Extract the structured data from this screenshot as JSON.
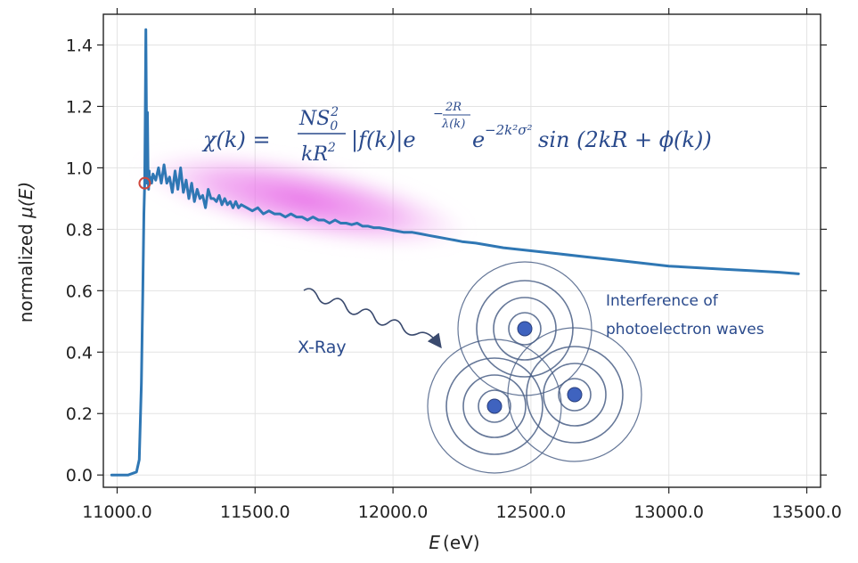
{
  "chart_data": {
    "type": "line",
    "xlabel_symbol": "E",
    "xlabel_unit": "(eV)",
    "ylabel_prefix": "normalized ",
    "ylabel_symbol": "μ(E)",
    "xlim": [
      10950,
      13550
    ],
    "ylim": [
      -0.04,
      1.5
    ],
    "xticks": [
      11000,
      11500,
      12000,
      12500,
      13000,
      13500
    ],
    "xtick_labels": [
      "11000.0",
      "11500.0",
      "12000.0",
      "12500.0",
      "13000.0",
      "13500.0"
    ],
    "yticks": [
      0.0,
      0.2,
      0.4,
      0.6,
      0.8,
      1.0,
      1.2,
      1.4
    ],
    "ytick_labels": [
      "0.0",
      "0.2",
      "0.4",
      "0.6",
      "0.8",
      "1.0",
      "1.2",
      "1.4"
    ],
    "grid": true,
    "series": [
      {
        "color": "#2f77b4",
        "x": [
          10980,
          11000,
          11040,
          11070,
          11080,
          11088,
          11093,
          11097,
          11100,
          11102,
          11104,
          11106,
          11108,
          11110,
          11112,
          11114,
          11116,
          11118,
          11120,
          11125,
          11130,
          11140,
          11150,
          11160,
          11170,
          11180,
          11190,
          11200,
          11210,
          11220,
          11230,
          11240,
          11250,
          11260,
          11270,
          11280,
          11290,
          11300,
          11310,
          11320,
          11330,
          11340,
          11350,
          11360,
          11370,
          11380,
          11390,
          11400,
          11410,
          11420,
          11430,
          11440,
          11450,
          11470,
          11490,
          11510,
          11530,
          11550,
          11570,
          11590,
          11610,
          11630,
          11650,
          11670,
          11690,
          11710,
          11730,
          11750,
          11770,
          11790,
          11810,
          11830,
          11850,
          11870,
          11890,
          11910,
          11930,
          11950,
          11980,
          12010,
          12040,
          12070,
          12100,
          12130,
          12160,
          12190,
          12220,
          12250,
          12300,
          12400,
          12500,
          12600,
          12700,
          12800,
          12900,
          13000,
          13100,
          13200,
          13300,
          13400,
          13470
        ],
        "y": [
          0.0,
          0.0,
          0.0,
          0.01,
          0.05,
          0.3,
          0.6,
          0.85,
          0.95,
          1.2,
          1.45,
          1.2,
          0.95,
          1.18,
          0.98,
          0.93,
          0.99,
          0.95,
          0.97,
          0.95,
          0.98,
          0.96,
          1.0,
          0.95,
          1.01,
          0.95,
          0.97,
          0.92,
          0.99,
          0.93,
          1.0,
          0.92,
          0.96,
          0.9,
          0.95,
          0.89,
          0.93,
          0.9,
          0.91,
          0.87,
          0.93,
          0.9,
          0.9,
          0.89,
          0.91,
          0.88,
          0.9,
          0.88,
          0.89,
          0.87,
          0.89,
          0.87,
          0.88,
          0.87,
          0.86,
          0.87,
          0.85,
          0.86,
          0.85,
          0.85,
          0.84,
          0.85,
          0.84,
          0.84,
          0.83,
          0.84,
          0.83,
          0.83,
          0.82,
          0.83,
          0.82,
          0.82,
          0.815,
          0.82,
          0.81,
          0.81,
          0.805,
          0.805,
          0.8,
          0.795,
          0.79,
          0.79,
          0.785,
          0.78,
          0.775,
          0.77,
          0.765,
          0.76,
          0.755,
          0.74,
          0.73,
          0.72,
          0.71,
          0.7,
          0.69,
          0.68,
          0.675,
          0.67,
          0.665,
          0.66,
          0.655
        ]
      }
    ],
    "marker": {
      "x": 11100,
      "y": 0.95,
      "color": "#d0473c"
    },
    "highlight_color": "#e060e0"
  },
  "annotations": {
    "formula_lhs": "χ(k) =",
    "formula_num": "NS",
    "formula_num_sub": "0",
    "formula_num_sup": "2",
    "formula_den": "kR",
    "formula_den_sup": "2",
    "formula_mid": "|f(k)|e",
    "formula_exp1_num": "2R",
    "formula_exp1_den": "λ(k)",
    "formula_e2": "e",
    "formula_exp2": "−2k²σ²",
    "formula_sin": "sin (2kR + ϕ(k))",
    "xray_label": "X-Ray",
    "interference_line1": "Interference of",
    "interference_line2": "photoelectron waves",
    "ring_color": "#4a5f86",
    "dot_color": "#3f63bf"
  }
}
